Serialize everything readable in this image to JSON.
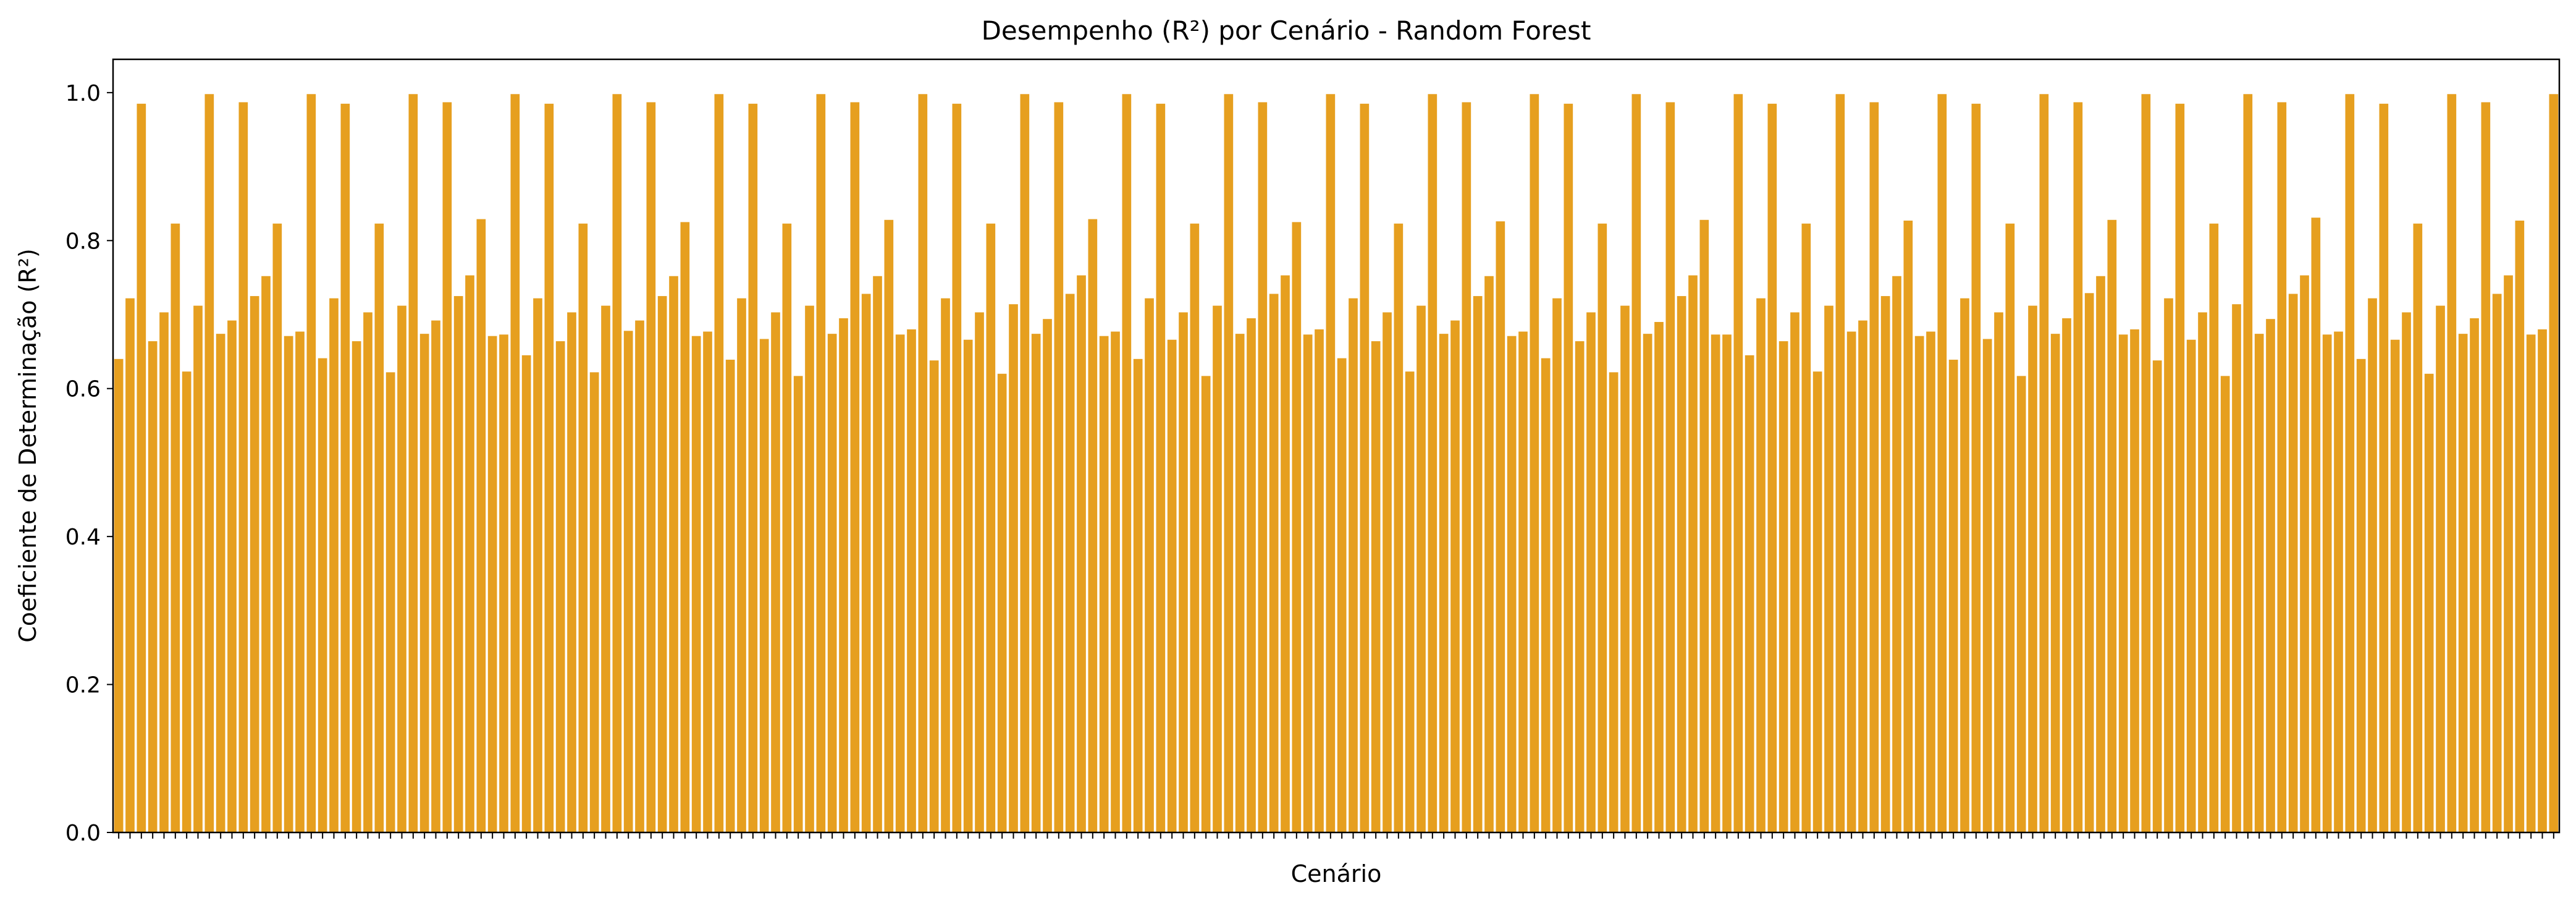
{
  "chart_data": {
    "type": "bar",
    "title": "Desempenho (R²) por Cenário - Random Forest",
    "xlabel": "Cenário",
    "ylabel": "Coeficiente de Determinação (R²)",
    "ylim": [
      0,
      1.045
    ],
    "yticks": [
      "0.0",
      "0.2",
      "0.4",
      "0.6",
      "0.8",
      "1.0"
    ],
    "grid": false,
    "legend": "none",
    "bar_color": "#E69F1F",
    "values": [
      0.64,
      0.722,
      0.985,
      0.664,
      0.703,
      0.823,
      0.623,
      0.712,
      0.998,
      0.674,
      0.692,
      0.987,
      0.725,
      0.752,
      0.823,
      0.671,
      0.677,
      0.998,
      0.641,
      0.722,
      0.985,
      0.664,
      0.703,
      0.823,
      0.622,
      0.712,
      0.998,
      0.674,
      0.692,
      0.987,
      0.725,
      0.753,
      0.829,
      0.671,
      0.673,
      0.998,
      0.645,
      0.722,
      0.985,
      0.664,
      0.703,
      0.823,
      0.622,
      0.712,
      0.998,
      0.678,
      0.692,
      0.987,
      0.725,
      0.752,
      0.825,
      0.671,
      0.677,
      0.998,
      0.639,
      0.722,
      0.985,
      0.667,
      0.703,
      0.823,
      0.617,
      0.712,
      0.998,
      0.674,
      0.695,
      0.987,
      0.728,
      0.752,
      0.828,
      0.673,
      0.68,
      0.998,
      0.638,
      0.722,
      0.985,
      0.666,
      0.703,
      0.823,
      0.62,
      0.714,
      0.998,
      0.674,
      0.694,
      0.987,
      0.728,
      0.753,
      0.829,
      0.671,
      0.677,
      0.998,
      0.64,
      0.722,
      0.985,
      0.666,
      0.703,
      0.823,
      0.617,
      0.712,
      0.998,
      0.674,
      0.695,
      0.987,
      0.728,
      0.753,
      0.825,
      0.673,
      0.68,
      0.998,
      0.641,
      0.722,
      0.985,
      0.664,
      0.703,
      0.823,
      0.623,
      0.712,
      0.998,
      0.674,
      0.692,
      0.987,
      0.725,
      0.752,
      0.826,
      0.671,
      0.677,
      0.998,
      0.641,
      0.722,
      0.985,
      0.664,
      0.703,
      0.823,
      0.622,
      0.712,
      0.998,
      0.674,
      0.69,
      0.987,
      0.725,
      0.753,
      0.828,
      0.673,
      0.673,
      0.998,
      0.645,
      0.722,
      0.985,
      0.664,
      0.703,
      0.823,
      0.623,
      0.712,
      0.998,
      0.677,
      0.692,
      0.987,
      0.725,
      0.752,
      0.827,
      0.671,
      0.677,
      0.998,
      0.639,
      0.722,
      0.985,
      0.667,
      0.703,
      0.823,
      0.617,
      0.712,
      0.998,
      0.674,
      0.695,
      0.987,
      0.729,
      0.752,
      0.828,
      0.673,
      0.68,
      0.998,
      0.638,
      0.722,
      0.985,
      0.666,
      0.703,
      0.823,
      0.617,
      0.714,
      0.998,
      0.674,
      0.694,
      0.987,
      0.728,
      0.753,
      0.831,
      0.673,
      0.677,
      0.998,
      0.64,
      0.722,
      0.985,
      0.666,
      0.703,
      0.823,
      0.62,
      0.712,
      0.998,
      0.674,
      0.695,
      0.987,
      0.728,
      0.753,
      0.827,
      0.673,
      0.68,
      0.998
    ]
  }
}
